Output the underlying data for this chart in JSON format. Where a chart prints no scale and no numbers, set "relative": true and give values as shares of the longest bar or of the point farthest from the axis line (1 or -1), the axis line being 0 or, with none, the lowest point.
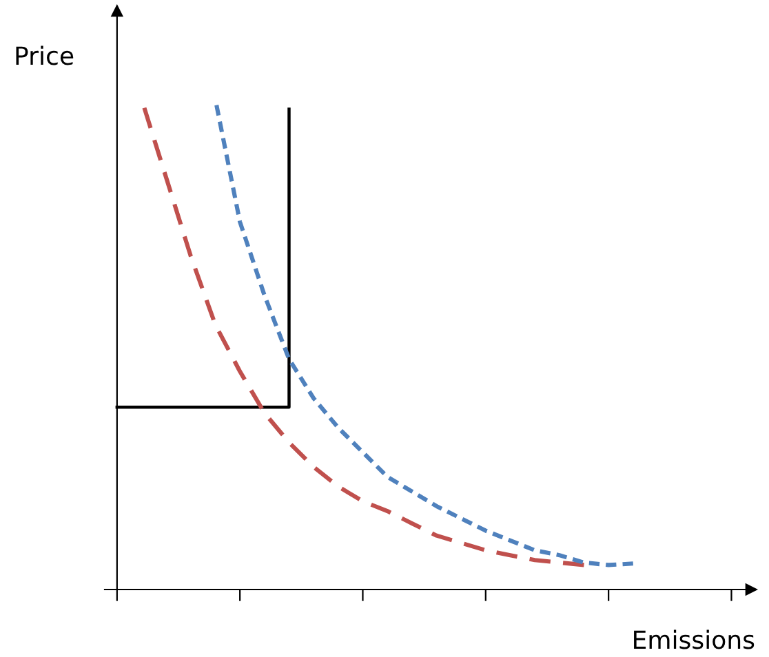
{
  "chart_data": {
    "type": "line",
    "relative": true,
    "xlabel": "Emissions",
    "ylabel": "Price",
    "grid": false,
    "legend": false,
    "marker": "none",
    "categories": [
      null,
      null,
      null,
      null,
      null,
      null,
      null,
      null,
      null,
      null,
      null,
      null,
      null,
      null,
      null,
      null,
      null,
      null,
      null,
      null,
      null,
      null,
      null,
      null,
      null,
      null
    ],
    "series": [
      {
        "type": "step",
        "color": "#000000",
        "line_style": "solid",
        "values": [
          0.372,
          0.372,
          0.372,
          0.372,
          0.372,
          0.372,
          0.372,
          0.98,
          null,
          null,
          null,
          null,
          null,
          null,
          null,
          null,
          null,
          null,
          null,
          null,
          null,
          null,
          null,
          null,
          null,
          null
        ]
      },
      {
        "color": "#c0504d",
        "line_style": "dashed",
        "values": [
          null,
          1.0,
          0.84,
          0.68,
          0.54,
          0.445,
          0.36,
          0.3,
          0.25,
          0.21,
          0.18,
          0.16,
          0.135,
          0.11,
          0.095,
          0.08,
          0.07,
          0.06,
          0.055,
          0.05,
          null,
          null,
          null,
          null,
          null,
          null
        ]
      },
      {
        "color": "#4f81bd",
        "line_style": "dotted",
        "values": [
          null,
          null,
          null,
          null,
          1.0,
          0.75,
          0.6,
          0.47,
          0.39,
          0.33,
          0.28,
          0.23,
          0.2,
          0.17,
          0.145,
          0.12,
          0.1,
          0.08,
          0.07,
          0.055,
          0.05,
          0.053,
          null,
          null,
          null,
          null
        ]
      }
    ]
  }
}
